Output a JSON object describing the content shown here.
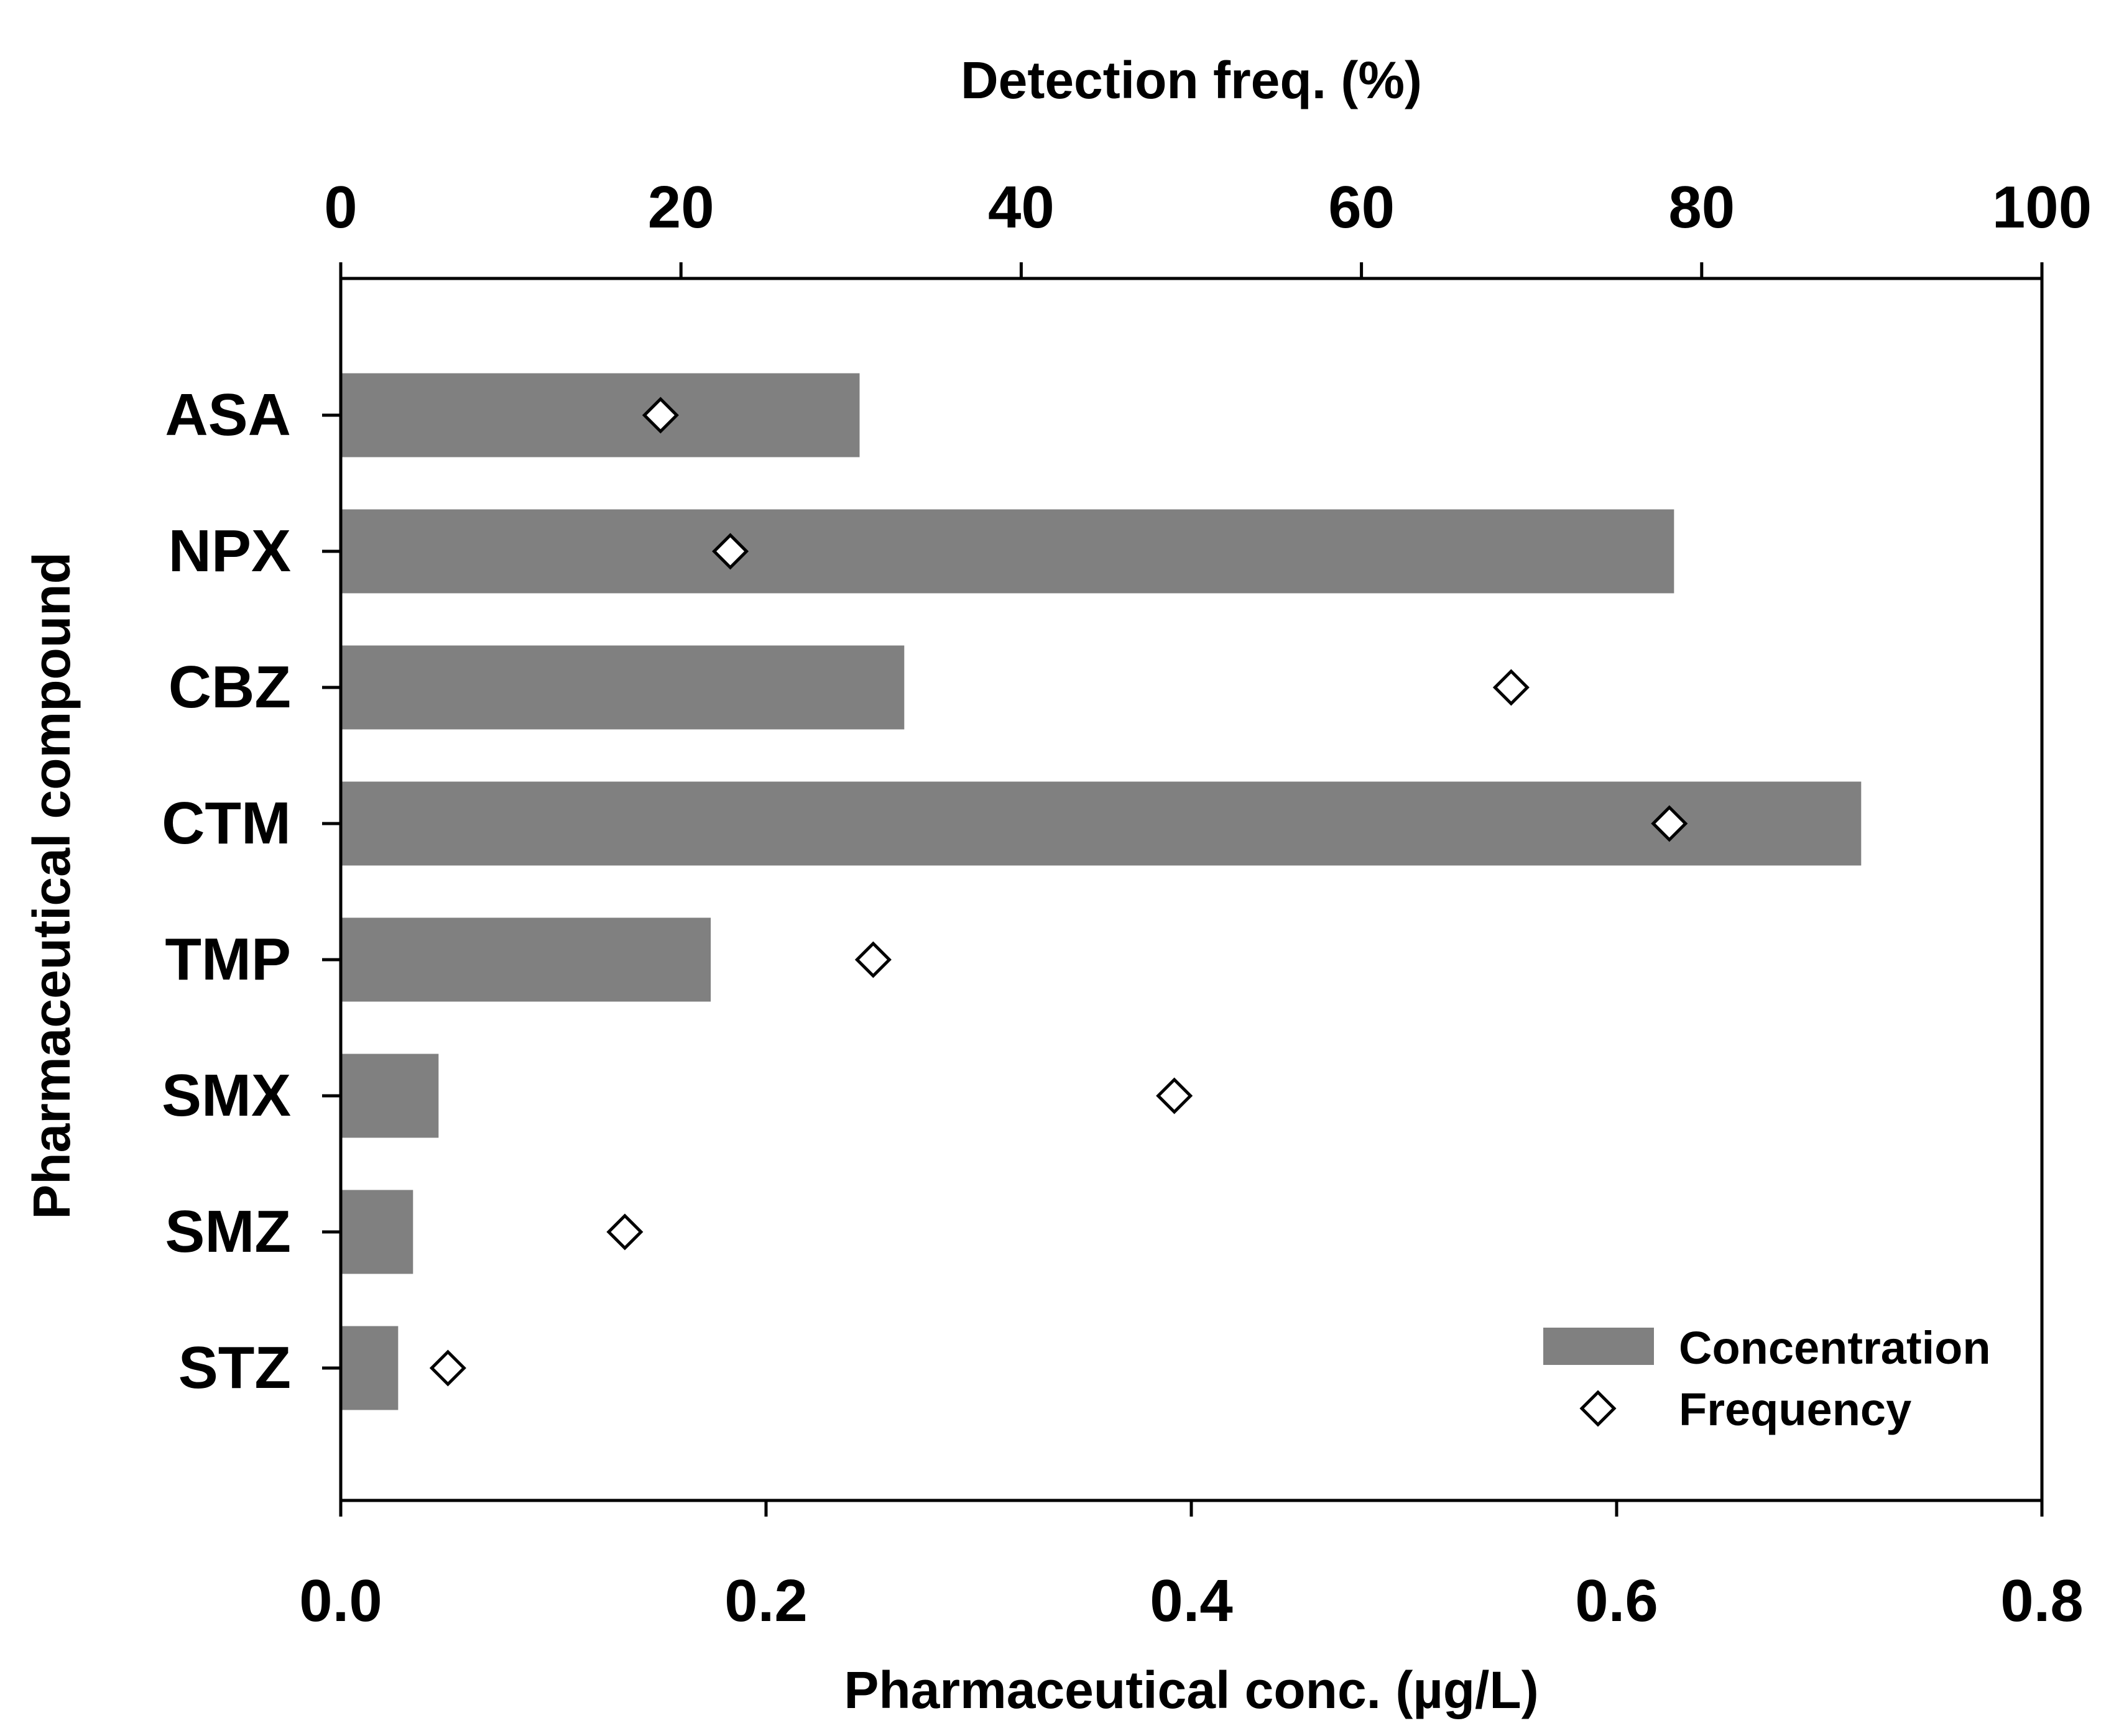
{
  "chart_data": {
    "type": "bar",
    "orientation": "horizontal",
    "categories": [
      "ASA",
      "NPX",
      "CBZ",
      "CTM",
      "TMP",
      "SMX",
      "SMZ",
      "STZ"
    ],
    "series": [
      {
        "name": "Concentration",
        "kind": "bar",
        "axis": "bottom",
        "values": [
          0.244,
          0.627,
          0.265,
          0.715,
          0.174,
          0.046,
          0.034,
          0.027
        ]
      },
      {
        "name": "Frequency",
        "kind": "scatter",
        "marker": "diamond",
        "axis": "top",
        "values": [
          18.8,
          22.9,
          68.8,
          78.1,
          31.3,
          49.0,
          16.7,
          6.3
        ]
      }
    ],
    "xlabel_bottom": "Pharmaceutical conc. (µg/L)",
    "xlabel_top": "Detection freq. (%)",
    "ylabel": "Pharmaceutical compound",
    "xlim_bottom": [
      0.0,
      0.8
    ],
    "xlim_top": [
      0,
      100
    ],
    "xticks_bottom": [
      "0.0",
      "0.2",
      "0.4",
      "0.6",
      "0.8"
    ],
    "xticks_top": [
      "0",
      "20",
      "40",
      "60",
      "80",
      "100"
    ],
    "legend": {
      "position": "bottom-right",
      "entries": [
        "Concentration",
        "Frequency"
      ]
    },
    "grid": false,
    "colors": {
      "bar": "#808080",
      "marker_fill": "#ffffff",
      "marker_stroke": "#000000",
      "axis": "#000000"
    }
  }
}
